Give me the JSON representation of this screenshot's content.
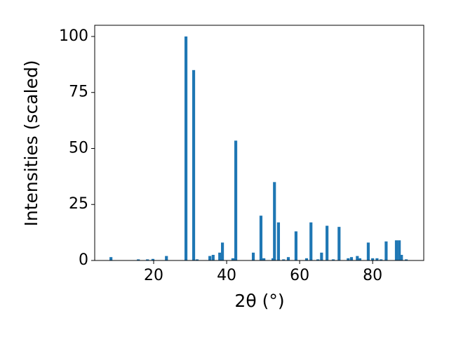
{
  "chart_data": {
    "type": "bar",
    "xlabel": "2θ (°)",
    "ylabel": "Intensities (scaled)",
    "color": "#1f77b4",
    "xlim": [
      3.85,
      94.0
    ],
    "ylim": [
      0,
      105
    ],
    "xticks": [
      20,
      40,
      60,
      80
    ],
    "yticks": [
      0,
      25,
      50,
      75,
      100
    ],
    "x": [
      8.3,
      15.8,
      18.3,
      19.8,
      23.5,
      28.85,
      30.96,
      31.9,
      35.4,
      36.3,
      38.1,
      38.85,
      41.7,
      42.5,
      47.3,
      49.4,
      50.2,
      52.7,
      53.1,
      54.2,
      55.6,
      56.9,
      59.0,
      61.9,
      63.1,
      65.0,
      66.0,
      67.5,
      69.2,
      70.8,
      73.3,
      74.2,
      75.8,
      76.5,
      78.8,
      80.0,
      81.2,
      82.3,
      83.7,
      86.5,
      87.3,
      87.9,
      89.2
    ],
    "values": [
      1.5,
      0.5,
      0.5,
      0.7,
      2,
      100,
      85,
      0.5,
      2,
      2.5,
      3.5,
      8,
      1,
      53.5,
      3.5,
      20,
      1,
      1,
      35,
      17,
      0.5,
      1.5,
      13,
      1,
      17,
      0.5,
      3.5,
      15.5,
      0.5,
      15,
      1,
      1.5,
      2,
      1,
      8,
      1,
      1,
      0.5,
      8.5,
      9,
      9,
      2.5,
      0.5
    ]
  }
}
